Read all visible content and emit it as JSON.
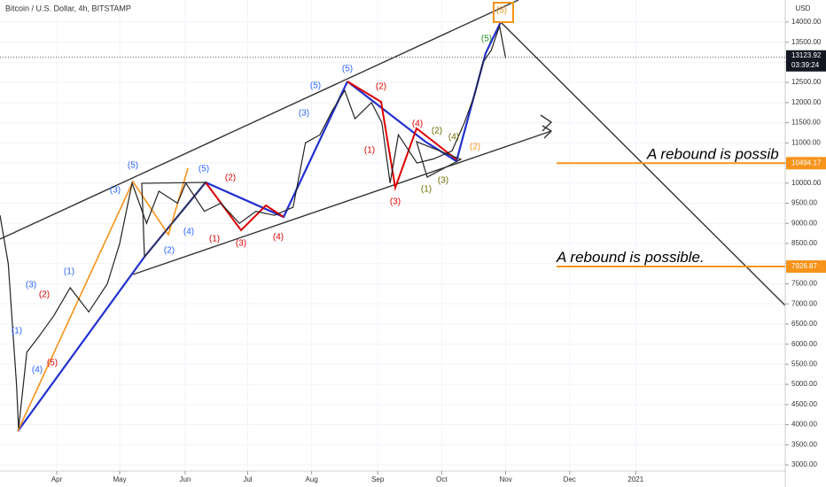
{
  "chart_data": {
    "type": "line",
    "title": "Bitcoin / U.S. Dollar, 4h, BITSTAMP",
    "currency": "USD",
    "x": [
      0,
      4,
      8,
      9,
      13,
      19,
      26,
      34,
      43,
      52,
      58,
      64,
      71,
      77,
      86,
      90,
      99,
      107,
      116,
      124,
      133,
      142,
      148,
      155,
      161,
      167,
      172,
      180,
      185,
      189,
      193,
      202,
      210,
      219,
      225,
      230,
      234,
      238,
      242,
      245
    ],
    "series": [
      {
        "name": "BTCUSD",
        "color": "#222222",
        "values": [
          9200,
          8000,
          5000,
          3900,
          5800,
          6200,
          6700,
          7400,
          6800,
          7500,
          8500,
          10000,
          9000,
          9800,
          9500,
          10000,
          9300,
          9500,
          9000,
          9300,
          9200,
          9400,
          11000,
          11200,
          11800,
          12300,
          11600,
          12000,
          11500,
          10000,
          11200,
          10500,
          10600,
          10800,
          11500,
          12200,
          13000,
          13300,
          13900,
          13100
        ]
      }
    ],
    "xlim": [
      0,
      380
    ],
    "xticks": [
      {
        "value": 27.5,
        "label": "Apr"
      },
      {
        "value": 58,
        "label": "May"
      },
      {
        "value": 89.7,
        "label": "Jun"
      },
      {
        "value": 120,
        "label": "Jul"
      },
      {
        "value": 151,
        "label": "Aug"
      },
      {
        "value": 183,
        "label": "Sep"
      },
      {
        "value": 214,
        "label": "Oct"
      },
      {
        "value": 245,
        "label": "Nov"
      },
      {
        "value": 276,
        "label": "Dec"
      },
      {
        "value": 308,
        "label": "2021"
      }
    ],
    "ylim": [
      2715,
      14548
    ],
    "yticks": [
      {
        "value": 3000,
        "label": "3000.00"
      },
      {
        "value": 3500,
        "label": "3500.00"
      },
      {
        "value": 4000,
        "label": "4000.00"
      },
      {
        "value": 4500,
        "label": "4500.00"
      },
      {
        "value": 5000,
        "label": "5000.00"
      },
      {
        "value": 5500,
        "label": "5500.00"
      },
      {
        "value": 6000,
        "label": "6000.00"
      },
      {
        "value": 6500,
        "label": "6500.00"
      },
      {
        "value": 7000,
        "label": "7000.00"
      },
      {
        "value": 7500,
        "label": "7500.00"
      },
      {
        "value": 8000,
        "label": "8000.00"
      },
      {
        "value": 8500,
        "label": "8500.00"
      },
      {
        "value": 9000,
        "label": "9000.00"
      },
      {
        "value": 9500,
        "label": "9500.00"
      },
      {
        "value": 10000,
        "label": "10000.00"
      },
      {
        "value": 10500,
        "label": "10500.00"
      },
      {
        "value": 11000,
        "label": "11000.00"
      },
      {
        "value": 11500,
        "label": "11500.00"
      },
      {
        "value": 12000,
        "label": "12000.00"
      },
      {
        "value": 12500,
        "label": "12500.00"
      },
      {
        "value": 13000,
        "label": "13000.00"
      },
      {
        "value": 13500,
        "label": "13500.00"
      },
      {
        "value": 14000,
        "label": "14000.00"
      }
    ],
    "grid": true,
    "last_price": {
      "value": 13123.92,
      "label": "13123.92",
      "countdown": "03:39:24"
    },
    "levels": [
      {
        "value": 10494.17,
        "label": "10494.17",
        "color": "#f7931a",
        "note": "A rebound is possib"
      },
      {
        "value": 7926.87,
        "label": "7926.87",
        "color": "#f7931a",
        "note": "A rebound is possible."
      }
    ],
    "wave_labels": [
      {
        "text": "(1)",
        "color": "#2962ff"
      },
      {
        "text": "(3)",
        "color": "#2962ff"
      },
      {
        "text": "(4)",
        "color": "#2962ff"
      },
      {
        "text": "(2)",
        "color": "#e00000"
      },
      {
        "text": "(5)",
        "color": "#e00000"
      },
      {
        "text": "(1)",
        "color": "#2962ff"
      },
      {
        "text": "(3)",
        "color": "#2962ff"
      },
      {
        "text": "(5)",
        "color": "#2962ff"
      },
      {
        "text": "(2)",
        "color": "#2962ff"
      },
      {
        "text": "(4)",
        "color": "#2962ff"
      },
      {
        "text": "(5)",
        "color": "#2962ff"
      },
      {
        "text": "(1)",
        "color": "#e00000"
      },
      {
        "text": "(2)",
        "color": "#e00000"
      },
      {
        "text": "(3)",
        "color": "#e00000"
      },
      {
        "text": "(4)",
        "color": "#e00000"
      },
      {
        "text": "(3)",
        "color": "#2962ff"
      },
      {
        "text": "(5)",
        "color": "#2962ff"
      },
      {
        "text": "(5)",
        "color": "#2962ff"
      },
      {
        "text": "(1)",
        "color": "#e00000"
      },
      {
        "text": "(2)",
        "color": "#e00000"
      },
      {
        "text": "(3)",
        "color": "#e00000"
      },
      {
        "text": "(4)",
        "color": "#e00000"
      },
      {
        "text": "(1)",
        "color": "#6b6b00"
      },
      {
        "text": "(2)",
        "color": "#6b6b00"
      },
      {
        "text": "(3)",
        "color": "#6b6b00"
      },
      {
        "text": "(4)",
        "color": "#6b6b00"
      },
      {
        "text": "(2)",
        "color": "#f7931a"
      },
      {
        "text": "(5)",
        "color": "#1b8a1b"
      },
      {
        "text": "(5)",
        "color": "#f7931a"
      }
    ]
  }
}
